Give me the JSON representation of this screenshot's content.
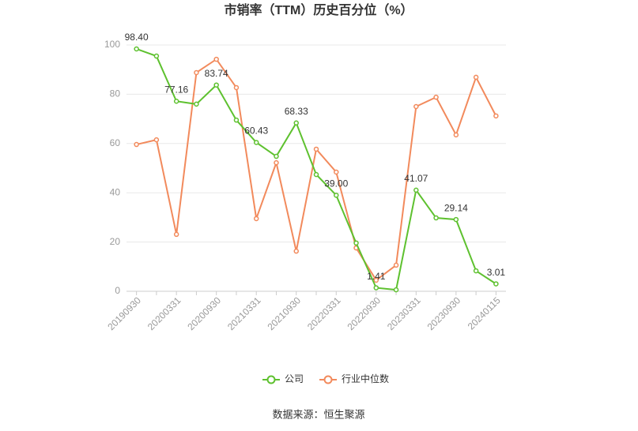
{
  "chart_data": {
    "type": "line",
    "title": "市销率（TTM）历史百分位（%）",
    "categories": [
      "20190930",
      null,
      "20200331",
      null,
      "20200930",
      null,
      "20210331",
      null,
      "20210930",
      null,
      "20220331",
      null,
      "20220930",
      null,
      "20230331",
      null,
      "20230930",
      null,
      "20240115"
    ],
    "series": [
      {
        "name": "公司",
        "color": "#5ec12f",
        "values": [
          98.4,
          95.5,
          77.16,
          76.0,
          83.74,
          69.5,
          60.43,
          54.8,
          68.33,
          47.4,
          39.0,
          19.6,
          1.41,
          0.6,
          41.07,
          29.8,
          29.14,
          8.3,
          3.01
        ],
        "value_labels": [
          "98.40",
          null,
          "77.16",
          null,
          "83.74",
          null,
          "60.43",
          null,
          "68.33",
          null,
          "39.00",
          null,
          "1.41",
          null,
          "41.07",
          null,
          "29.14",
          null,
          "3.01"
        ]
      },
      {
        "name": "行业中位数",
        "color": "#f28a5c",
        "values": [
          59.6,
          61.5,
          23.1,
          88.8,
          94.2,
          82.7,
          29.5,
          52.2,
          16.3,
          57.7,
          48.4,
          17.6,
          4.5,
          10.6,
          75.0,
          78.8,
          63.5,
          86.9,
          71.2
        ]
      }
    ],
    "ylim": [
      0,
      100
    ],
    "yticks": [
      0,
      20,
      40,
      60,
      80,
      100
    ],
    "grid": true,
    "legend": "bottom",
    "source": "数据来源：恒生聚源"
  }
}
